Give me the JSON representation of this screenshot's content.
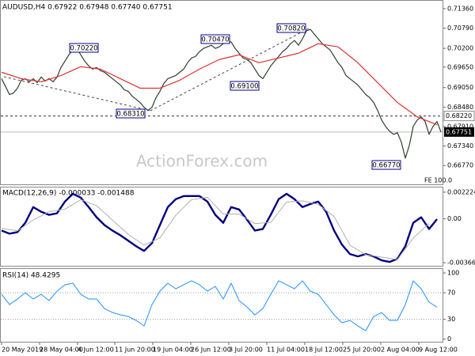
{
  "chart_data": [
    {
      "type": "line",
      "title": "AUDUSD,H4 0.67922 0.67948 0.67740 0.67751",
      "note": "FE 100.0",
      "watermark": "ActionForex.com",
      "xlim": [
        0,
        111
      ],
      "ylim": [
        0.6622,
        0.7159
      ],
      "yticks": [
        {
          "value": 0.7136,
          "label": "0.71360"
        },
        {
          "value": 0.7079,
          "label": "0.70790"
        },
        {
          "value": 0.702,
          "label": "0.70200"
        },
        {
          "value": 0.6965,
          "label": "0.69650"
        },
        {
          "value": 0.6905,
          "label": "0.69050"
        },
        {
          "value": 0.6848,
          "label": "0.68480"
        },
        {
          "value": 0.6791,
          "label": "0.67910"
        },
        {
          "value": 0.6734,
          "label": "0.67340"
        },
        {
          "value": 0.6677,
          "label": "0.66770"
        }
      ],
      "price_labels": [
        {
          "value": 0.6822,
          "label": "0.68220"
        },
        {
          "value": 0.67751,
          "label": "0.67751"
        }
      ],
      "annotations": [
        "0.70220",
        "0.70470",
        "0.70820",
        "0.69100",
        "0.68310",
        "0.66770"
      ],
      "series": [
        {
          "color": "#2f3f2f",
          "values": [
            0.69312,
            0.6908,
            0.68847,
            0.68893,
            0.69033,
            0.69266,
            0.69312,
            0.69219,
            0.69312,
            0.69196,
            0.69359,
            0.69242,
            0.69312,
            0.69219,
            0.69359,
            0.69638,
            0.69824,
            0.7001,
            0.7015,
            0.70196,
            0.7001,
            0.69824,
            0.69685,
            0.69591,
            0.69638,
            0.69545,
            0.69498,
            0.69405,
            0.69312,
            0.69219,
            0.69126,
            0.68986,
            0.6894,
            0.688,
            0.68707,
            0.68614,
            0.68475,
            0.68381,
            0.68475,
            0.68754,
            0.6894,
            0.69173,
            0.69312,
            0.69359,
            0.69405,
            0.69498,
            0.69591,
            0.69778,
            0.69917,
            0.69964,
            0.70103,
            0.70196,
            0.70243,
            0.7029,
            0.70196,
            0.70243,
            0.70336,
            0.70429,
            0.70383,
            0.70196,
            0.70057,
            0.69917,
            0.69871,
            0.69778,
            0.69591,
            0.69405,
            0.69312,
            0.69498,
            0.69685,
            0.69824,
            0.69964,
            0.70103,
            0.70196,
            0.70336,
            0.70429,
            0.7029,
            0.70476,
            0.70708,
            0.70755,
            0.70615,
            0.70476,
            0.70336,
            0.70243,
            0.7015,
            0.69964,
            0.69778,
            0.69638,
            0.69405,
            0.69312,
            0.69219,
            0.69126,
            0.68986,
            0.68847,
            0.68754,
            0.68614,
            0.68381,
            0.68102,
            0.67916,
            0.67776,
            0.67683,
            0.6773,
            0.67451,
            0.66985,
            0.67358,
            0.67916,
            0.68102,
            0.68195,
            0.68056,
            0.67683,
            0.67916,
            0.68056,
            0.67751
          ],
          "width": 1.2
        },
        {
          "color": "#e03030",
          "x": [
            0,
            5,
            10,
            15,
            20,
            25,
            30,
            35,
            40,
            45,
            50,
            55,
            60,
            65,
            70,
            75,
            80,
            85,
            90,
            95,
            100,
            105,
            110
          ],
          "values": [
            0.69498,
            0.69312,
            0.69219,
            0.69405,
            0.69661,
            0.69591,
            0.69312,
            0.69033,
            0.69033,
            0.69266,
            0.69591,
            0.69871,
            0.7001,
            0.69778,
            0.69917,
            0.70057,
            0.70336,
            0.70243,
            0.69778,
            0.69196,
            0.68614,
            0.68195,
            0.67963
          ],
          "width": 1.2
        }
      ]
    },
    {
      "type": "line",
      "title": "MACD(12,26,9) -0.000033 -0.001488",
      "xlim": [
        0,
        111
      ],
      "ylim": [
        -0.003925,
        0.002616
      ],
      "yticks": [
        0.002224,
        {
          "value": 0,
          "label": "0.00"
        },
        -0.003667
      ],
      "series": [
        {
          "color": "#000080",
          "width": 2.4,
          "x": [
            0,
            2,
            4,
            6,
            8,
            10,
            12,
            14,
            16,
            18,
            20,
            22,
            24,
            26,
            28,
            30,
            32,
            34,
            36,
            38,
            40,
            42,
            44,
            46,
            48,
            50,
            52,
            54,
            56,
            58,
            60,
            62,
            64,
            66,
            68,
            70,
            72,
            74,
            76,
            78,
            80,
            82,
            84,
            86,
            88,
            90,
            92,
            94,
            96,
            98,
            100,
            102,
            104,
            106,
            108,
            110
          ],
          "values": [
            -0.00098,
            -0.00124,
            -0.00111,
            -0.00033,
            0.00098,
            0.00059,
            0.00033,
            0.00046,
            0.00144,
            0.00209,
            0.00177,
            0.00098,
            0.00013,
            -0.00052,
            -0.00098,
            -0.00137,
            -0.00183,
            -0.00229,
            -0.00268,
            -0.00203,
            -0.00052,
            0.00098,
            0.00164,
            0.0019,
            0.0019,
            0.0019,
            0.00144,
            0.00033,
            -0.00033,
            0.00098,
            0.00078,
            -7e-05,
            -0.00098,
            -0.00085,
            0.00033,
            0.00164,
            0.00209,
            0.00164,
            0.00098,
            0.00124,
            0.00144,
            0.00059,
            -0.00098,
            -0.00216,
            -0.00294,
            -0.00314,
            -0.00294,
            -0.00314,
            -0.00347,
            -0.0036,
            -0.00334,
            -0.00229,
            -0.00033,
            0.00013,
            -0.00085,
            -3e-05
          ]
        },
        {
          "color": "#b0b0b0",
          "width": 1,
          "x": [
            0,
            4,
            8,
            12,
            16,
            20,
            24,
            28,
            32,
            36,
            40,
            44,
            48,
            52,
            56,
            60,
            64,
            68,
            72,
            76,
            80,
            84,
            88,
            92,
            96,
            100,
            104,
            108
          ],
          "values": [
            -0.0008,
            -0.001,
            -0.0001,
            0.0006,
            0.0008,
            0.0016,
            0.0011,
            -0.0001,
            -0.0013,
            -0.0022,
            -0.0016,
            0.0003,
            0.0016,
            0.0018,
            0.0004,
            0.0004,
            -0.0004,
            -0.0003,
            0.0014,
            0.0015,
            0.0012,
            0.0002,
            -0.0022,
            -0.003,
            -0.0032,
            -0.0034,
            -0.0016,
            -0.0004
          ]
        }
      ]
    },
    {
      "type": "line",
      "title": "RSI(14) 48.4295",
      "xlim": [
        0,
        111
      ],
      "ylim": [
        -4,
        106
      ],
      "yticks": [
        100,
        70,
        30,
        0
      ],
      "levels": [
        70,
        30
      ],
      "xticks": [
        {
          "value": 0,
          "label": "20 May 2019"
        },
        {
          "value": 9.6,
          "label": "28 May 04:00"
        },
        {
          "value": 19.2,
          "label": "4 Jun 12:00"
        },
        {
          "value": 28.6,
          "label": "11 Jun 20:00"
        },
        {
          "value": 38.2,
          "label": "19 Jun 04:00"
        },
        {
          "value": 47.8,
          "label": "26 Jun 12:00"
        },
        {
          "value": 57.4,
          "label": "3 Jul 20:00"
        },
        {
          "value": 67,
          "label": "11 Jul 04:00"
        },
        {
          "value": 76.6,
          "label": "18 Jul 12:00"
        },
        {
          "value": 86.2,
          "label": "25 Jul 20:00"
        },
        {
          "value": 95.8,
          "label": "2 Aug 04:00"
        },
        {
          "value": 105.4,
          "label": "9 Aug 12:00"
        }
      ],
      "series": [
        {
          "color": "#1e90ff",
          "width": 1,
          "x": [
            0,
            2,
            4,
            6,
            8,
            10,
            12,
            14,
            16,
            18,
            20,
            22,
            24,
            26,
            28,
            30,
            32,
            34,
            36,
            38,
            40,
            42,
            44,
            46,
            48,
            50,
            52,
            54,
            56,
            58,
            60,
            62,
            64,
            66,
            68,
            70,
            72,
            74,
            76,
            78,
            80,
            82,
            84,
            86,
            88,
            90,
            92,
            94,
            96,
            98,
            100,
            102,
            104,
            106,
            108,
            110
          ],
          "values": [
            67.7,
            52.2,
            60.6,
            70.1,
            60.6,
            67.7,
            58.2,
            72.5,
            82.1,
            84.5,
            67.7,
            60.6,
            60.6,
            46.2,
            40.2,
            36.6,
            34.2,
            28.3,
            19.9,
            52.2,
            72.5,
            84.5,
            76.1,
            82.1,
            88.1,
            82.1,
            72.5,
            79.7,
            60.6,
            84.5,
            58.2,
            48.6,
            36.6,
            46.2,
            67.7,
            88.1,
            82.1,
            76.1,
            88.1,
            72.5,
            67.7,
            52.2,
            36.6,
            24.7,
            28.3,
            19.9,
            12.7,
            34.2,
            40.2,
            28.3,
            28.3,
            52.2,
            88.1,
            76.1,
            55.8,
            48.4
          ]
        }
      ]
    }
  ]
}
